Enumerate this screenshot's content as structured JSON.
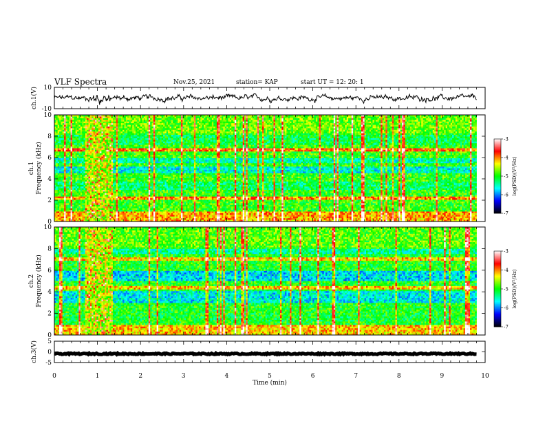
{
  "header": {
    "title": "VLF Spectra",
    "date": "Nov.25, 2021",
    "station": "station= KAP",
    "start": "start  UT  =   12: 20: 1"
  },
  "chart_data": [
    {
      "type": "line",
      "panel": "waveform",
      "ylabel": "ch.1(V)",
      "ylim": [
        -10,
        10
      ],
      "yticks": [
        "10",
        "-10"
      ],
      "xlim": [
        0,
        9.8
      ],
      "grid": false
    },
    {
      "type": "heatmap",
      "panel": "spectrogram",
      "ylabel": "ch.1  Frequency  (kHz)",
      "ylim": [
        0,
        10
      ],
      "yticks": [
        "0",
        "2",
        "4",
        "6",
        "8",
        "10"
      ],
      "xlim": [
        0,
        9.8
      ],
      "colorbar": {
        "label": "log(PSD)(V²/Hz)",
        "range": [
          -7,
          -3
        ],
        "ticks": [
          "-3",
          "-4",
          "-5",
          "-6",
          "-7"
        ],
        "colors": [
          "#ffffff",
          "#ff0000",
          "#ffff00",
          "#00ff00",
          "#00ffff",
          "#0000ff",
          "#000000"
        ]
      }
    },
    {
      "type": "heatmap",
      "panel": "spectrogram",
      "ylabel": "ch.2  Frequency  (kHz)",
      "ylim": [
        0,
        10
      ],
      "yticks": [
        "0",
        "2",
        "4",
        "6",
        "8",
        "10"
      ],
      "xlim": [
        0,
        9.8
      ],
      "colorbar": {
        "label": "log(PSD)(V²/Hz)",
        "range": [
          -7,
          -3
        ],
        "ticks": [
          "-3",
          "-4",
          "-5",
          "-6",
          "-7"
        ],
        "colors": [
          "#ffffff",
          "#ff0000",
          "#ffff00",
          "#00ff00",
          "#00ffff",
          "#0000ff",
          "#000000"
        ]
      }
    },
    {
      "type": "line",
      "panel": "waveform",
      "ylabel": "ch.3(V)",
      "ylim": [
        -5,
        5
      ],
      "yticks": [
        "5",
        "0",
        "-5"
      ],
      "xlim": [
        0,
        9.8
      ],
      "grid": false
    }
  ],
  "xaxis": {
    "label": "Time  (min)",
    "range": [
      0,
      10
    ],
    "ticks": [
      "0",
      "1",
      "2",
      "3",
      "4",
      "5",
      "6",
      "7",
      "8",
      "9",
      "10"
    ]
  }
}
